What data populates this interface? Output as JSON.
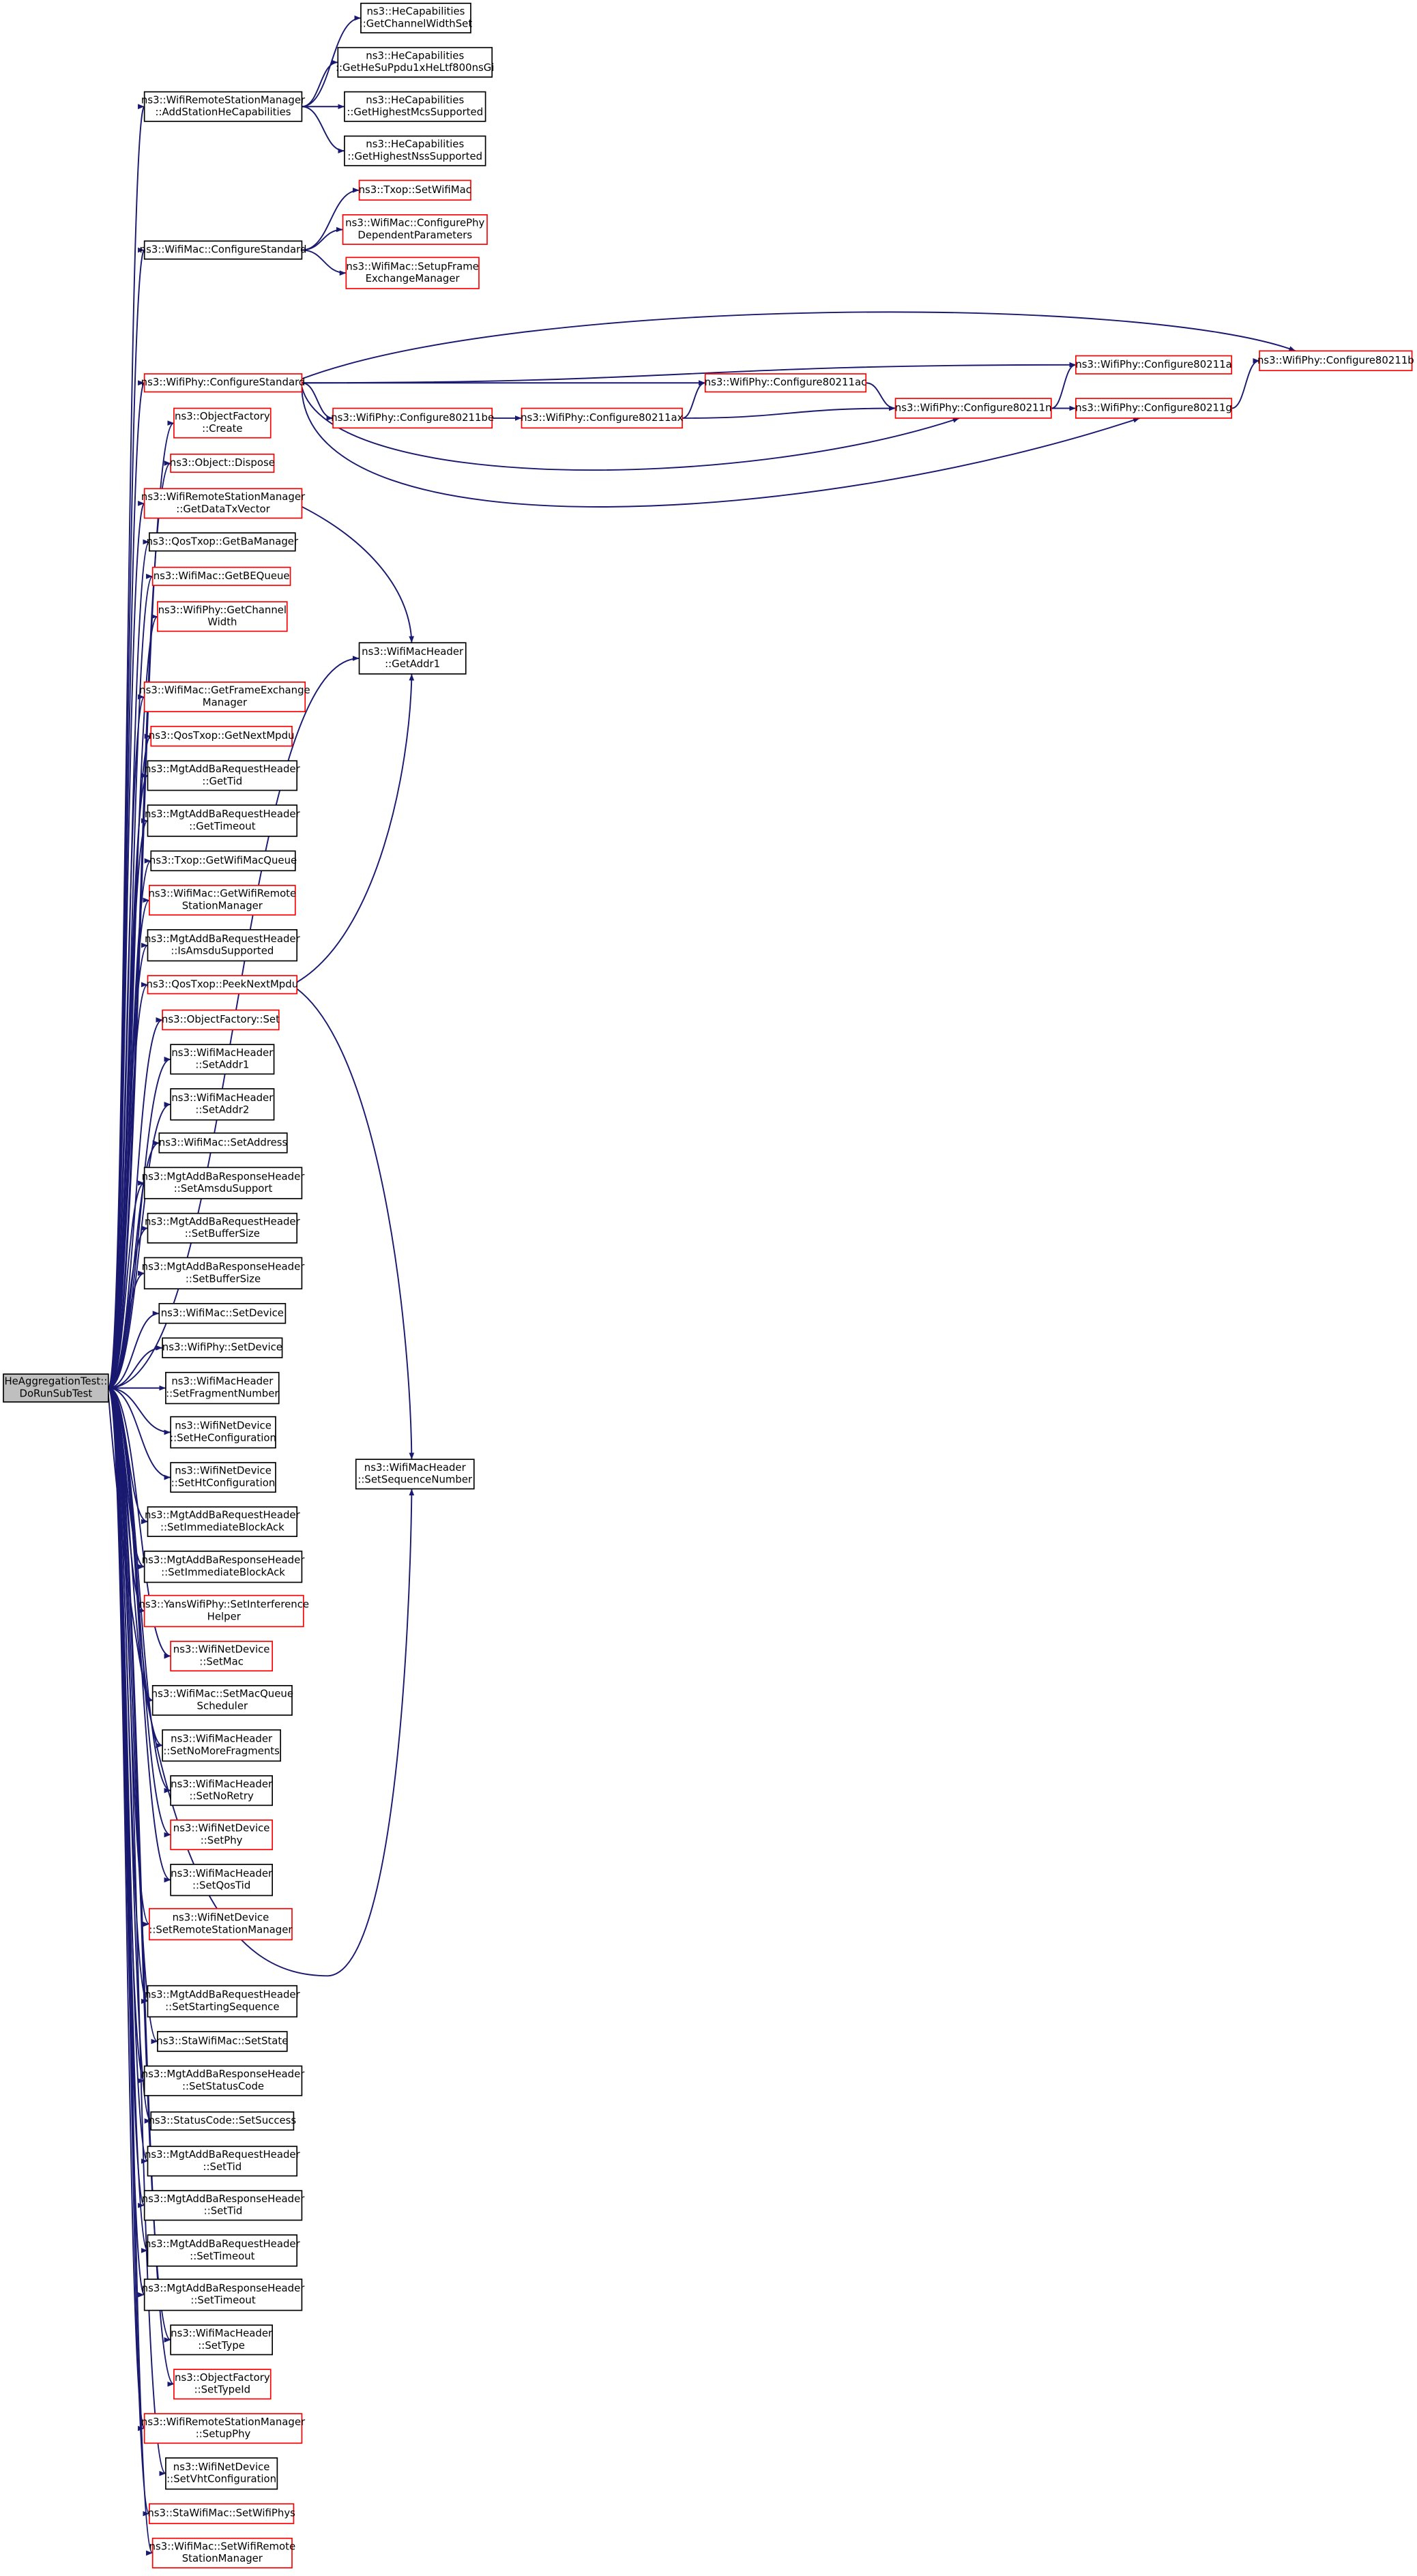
{
  "nodes": [
    {
      "label": [
        "HeAggregationTest::",
        "DoRunSubTest"
      ]
    },
    {
      "label": [
        "ns3::WifiRemoteStationManager",
        "::AddStationHeCapabilities"
      ]
    },
    {
      "label": [
        "ns3::WifiMac::ConfigureStandard"
      ]
    },
    {
      "label": [
        "ns3::WifiPhy::ConfigureStandard"
      ]
    },
    {
      "label": [
        "ns3::ObjectFactory",
        "::Create"
      ]
    },
    {
      "label": [
        "ns3::Object::Dispose"
      ]
    },
    {
      "label": [
        "ns3::WifiRemoteStationManager",
        "::GetDataTxVector"
      ]
    },
    {
      "label": [
        "ns3::QosTxop::GetBaManager"
      ]
    },
    {
      "label": [
        "ns3::WifiMac::GetBEQueue"
      ]
    },
    {
      "label": [
        "ns3::WifiPhy::GetChannel",
        "Width"
      ]
    },
    {
      "label": [
        "ns3::WifiMac::GetFrameExchange",
        "Manager"
      ]
    },
    {
      "label": [
        "ns3::QosTxop::GetNextMpdu"
      ]
    },
    {
      "label": [
        "ns3::MgtAddBaRequestHeader",
        "::GetTid"
      ]
    },
    {
      "label": [
        "ns3::MgtAddBaRequestHeader",
        "::GetTimeout"
      ]
    },
    {
      "label": [
        "ns3::Txop::GetWifiMacQueue"
      ]
    },
    {
      "label": [
        "ns3::WifiMac::GetWifiRemote",
        "StationManager"
      ]
    },
    {
      "label": [
        "ns3::MgtAddBaRequestHeader",
        "::IsAmsduSupported"
      ]
    },
    {
      "label": [
        "ns3::QosTxop::PeekNextMpdu"
      ]
    },
    {
      "label": [
        "ns3::ObjectFactory::Set"
      ]
    },
    {
      "label": [
        "ns3::WifiMacHeader",
        "::SetAddr1"
      ]
    },
    {
      "label": [
        "ns3::WifiMacHeader",
        "::SetAddr2"
      ]
    },
    {
      "label": [
        "ns3::WifiMac::SetAddress"
      ]
    },
    {
      "label": [
        "ns3::MgtAddBaResponseHeader",
        "::SetAmsduSupport"
      ]
    },
    {
      "label": [
        "ns3::MgtAddBaRequestHeader",
        "::SetBufferSize"
      ]
    },
    {
      "label": [
        "ns3::MgtAddBaResponseHeader",
        "::SetBufferSize"
      ]
    },
    {
      "label": [
        "ns3::WifiMac::SetDevice"
      ]
    },
    {
      "label": [
        "ns3::WifiPhy::SetDevice"
      ]
    },
    {
      "label": [
        "ns3::WifiMacHeader",
        "::SetFragmentNumber"
      ]
    },
    {
      "label": [
        "ns3::WifiNetDevice",
        "::SetHeConfiguration"
      ]
    },
    {
      "label": [
        "ns3::WifiNetDevice",
        "::SetHtConfiguration"
      ]
    },
    {
      "label": [
        "ns3::MgtAddBaRequestHeader",
        "::SetImmediateBlockAck"
      ]
    },
    {
      "label": [
        "ns3::MgtAddBaResponseHeader",
        "::SetImmediateBlockAck"
      ]
    },
    {
      "label": [
        "ns3::YansWifiPhy::SetInterference",
        "Helper"
      ]
    },
    {
      "label": [
        "ns3::WifiNetDevice",
        "::SetMac"
      ]
    },
    {
      "label": [
        "ns3::WifiMac::SetMacQueue",
        "Scheduler"
      ]
    },
    {
      "label": [
        "ns3::WifiMacHeader",
        "::SetNoMoreFragments"
      ]
    },
    {
      "label": [
        "ns3::WifiMacHeader",
        "::SetNoRetry"
      ]
    },
    {
      "label": [
        "ns3::WifiNetDevice",
        "::SetPhy"
      ]
    },
    {
      "label": [
        "ns3::WifiMacHeader",
        "::SetQosTid"
      ]
    },
    {
      "label": [
        "ns3::WifiNetDevice",
        "::SetRemoteStationManager"
      ]
    },
    {
      "label": [
        "ns3::MgtAddBaRequestHeader",
        "::SetStartingSequence"
      ]
    },
    {
      "label": [
        "ns3::StaWifiMac::SetState"
      ]
    },
    {
      "label": [
        "ns3::MgtAddBaResponseHeader",
        "::SetStatusCode"
      ]
    },
    {
      "label": [
        "ns3::StatusCode::SetSuccess"
      ]
    },
    {
      "label": [
        "ns3::MgtAddBaRequestHeader",
        "::SetTid"
      ]
    },
    {
      "label": [
        "ns3::MgtAddBaResponseHeader",
        "::SetTid"
      ]
    },
    {
      "label": [
        "ns3::MgtAddBaRequestHeader",
        "::SetTimeout"
      ]
    },
    {
      "label": [
        "ns3::MgtAddBaResponseHeader",
        "::SetTimeout"
      ]
    },
    {
      "label": [
        "ns3::WifiMacHeader",
        "::SetType"
      ]
    },
    {
      "label": [
        "ns3::ObjectFactory",
        "::SetTypeId"
      ]
    },
    {
      "label": [
        "ns3::WifiRemoteStationManager",
        "::SetupPhy"
      ]
    },
    {
      "label": [
        "ns3::WifiNetDevice",
        "::SetVhtConfiguration"
      ]
    },
    {
      "label": [
        "ns3::StaWifiMac::SetWifiPhys"
      ]
    },
    {
      "label": [
        "ns3::WifiMac::SetWifiRemote",
        "StationManager"
      ]
    },
    {
      "label": [
        "ns3::HeCapabilities",
        "::GetChannelWidthSet"
      ]
    },
    {
      "label": [
        "ns3::HeCapabilities",
        "::GetHeSuPpdu1xHeLtf800nsGi"
      ]
    },
    {
      "label": [
        "ns3::HeCapabilities",
        "::GetHighestMcsSupported"
      ]
    },
    {
      "label": [
        "ns3::HeCapabilities",
        "::GetHighestNssSupported"
      ]
    },
    {
      "label": [
        "ns3::Txop::SetWifiMac"
      ]
    },
    {
      "label": [
        "ns3::WifiMac::ConfigurePhy",
        "DependentParameters"
      ]
    },
    {
      "label": [
        "ns3::WifiMac::SetupFrame",
        "ExchangeManager"
      ]
    },
    {
      "label": [
        "ns3::WifiPhy::Configure80211be"
      ]
    },
    {
      "label": [
        "ns3::WifiMacHeader",
        "::GetAddr1"
      ]
    },
    {
      "label": [
        "ns3::WifiMacHeader",
        "::SetSequenceNumber"
      ]
    },
    {
      "label": [
        "ns3::WifiPhy::Configure80211ax"
      ]
    },
    {
      "label": [
        "ns3::WifiPhy::Configure80211ac"
      ]
    },
    {
      "label": [
        "ns3::WifiPhy::Configure80211n"
      ]
    },
    {
      "label": [
        "ns3::WifiPhy::Configure80211a"
      ]
    },
    {
      "label": [
        "ns3::WifiPhy::Configure80211g"
      ]
    },
    {
      "label": [
        "ns3::WifiPhy::Configure80211b"
      ]
    }
  ]
}
